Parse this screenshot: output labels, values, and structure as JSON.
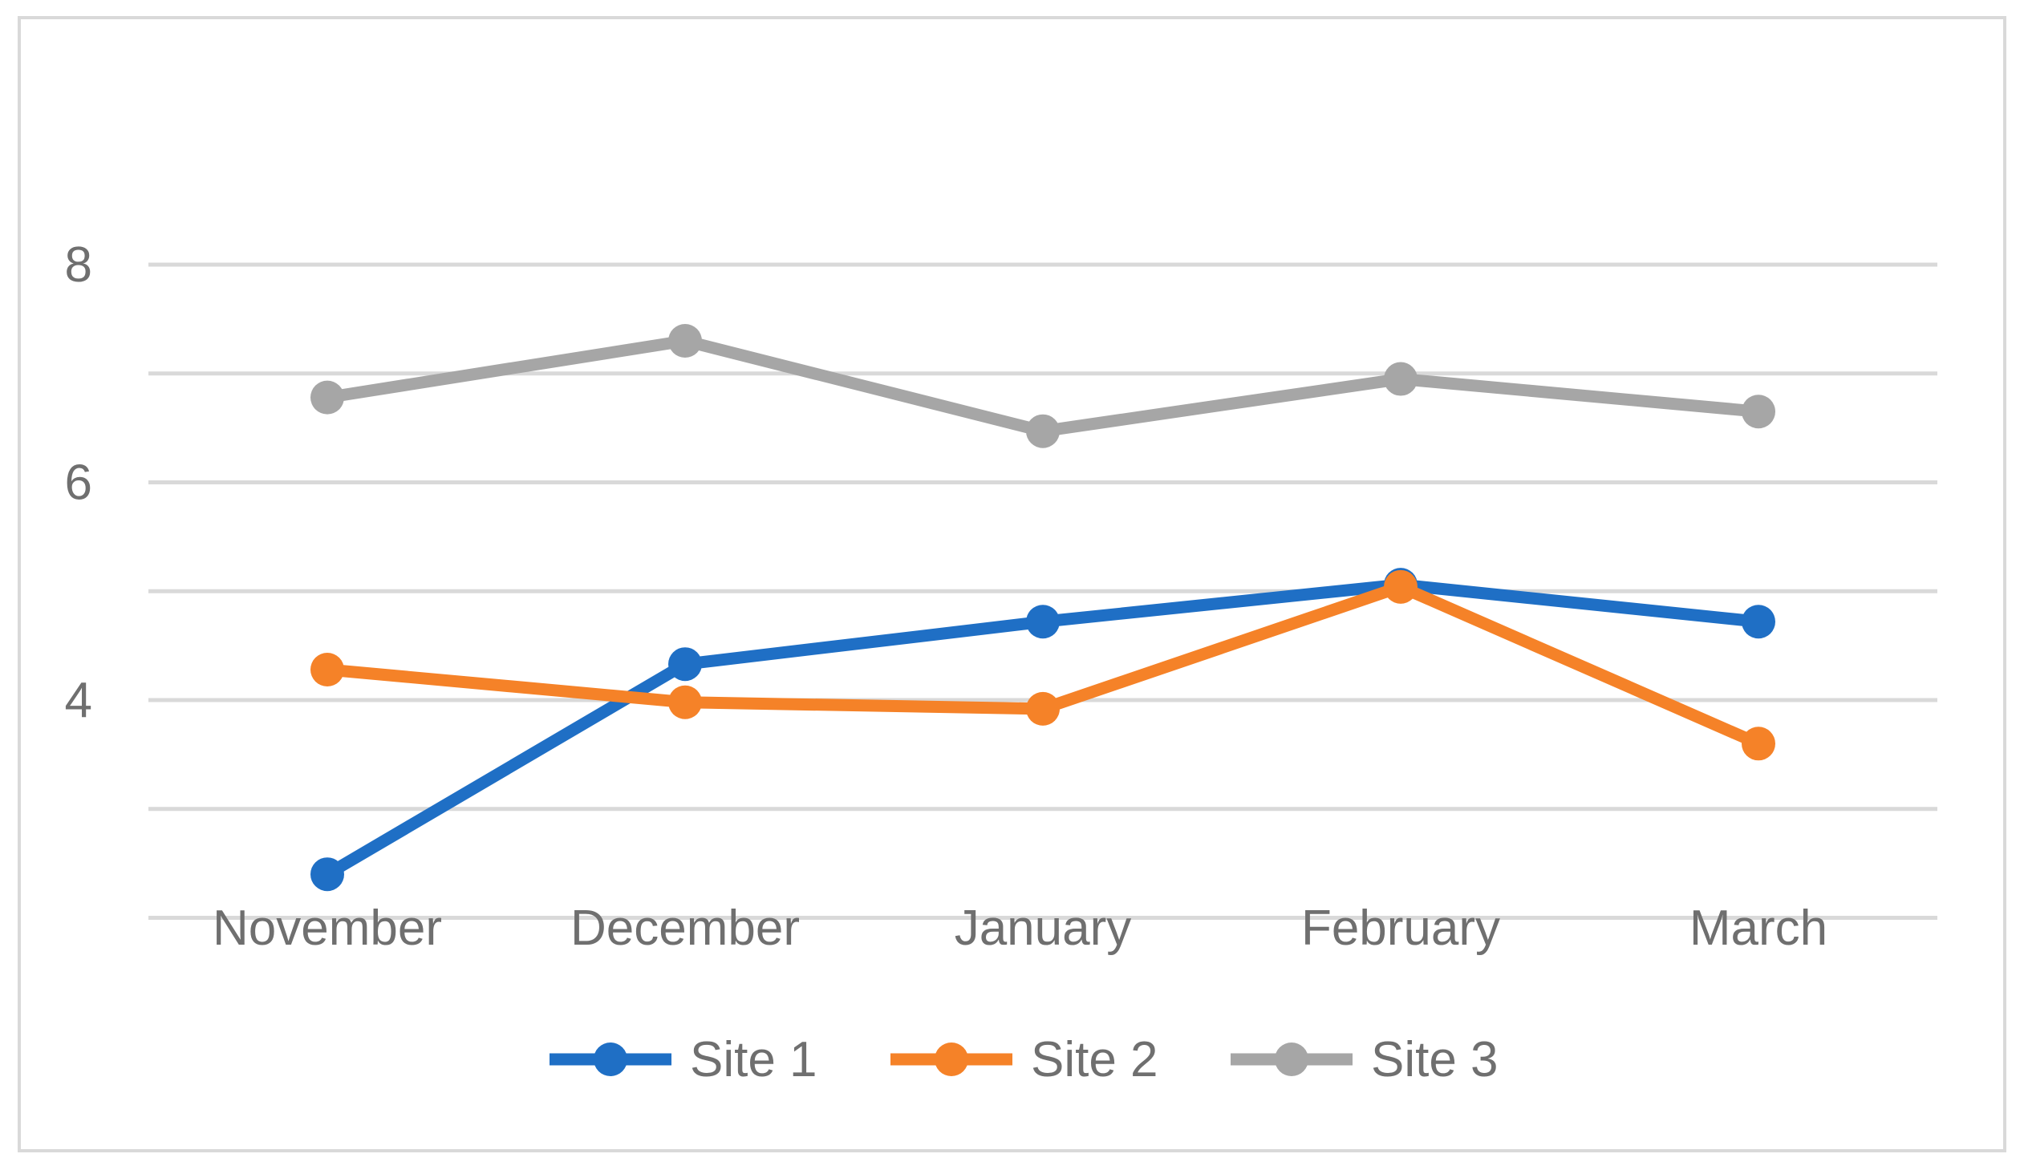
{
  "chart_data": {
    "type": "line",
    "title": "",
    "xlabel": "",
    "ylabel": "",
    "categories": [
      "November",
      "December",
      "January",
      "February",
      "March"
    ],
    "y_ticks": [
      4,
      6,
      8
    ],
    "ylim": [
      2.0,
      8.0
    ],
    "grid": true,
    "legend_position": "bottom",
    "series": [
      {
        "name": "Site 1",
        "color": "#1f6fc5",
        "values": [
          2.4,
          4.33,
          4.72,
          5.06,
          4.72
        ]
      },
      {
        "name": "Site 2",
        "color": "#f58228",
        "values": [
          4.28,
          3.98,
          3.92,
          5.04,
          3.6
        ]
      },
      {
        "name": "Site 3",
        "color": "#a6a6a6",
        "values": [
          6.78,
          7.3,
          6.47,
          6.95,
          6.65
        ]
      }
    ]
  }
}
